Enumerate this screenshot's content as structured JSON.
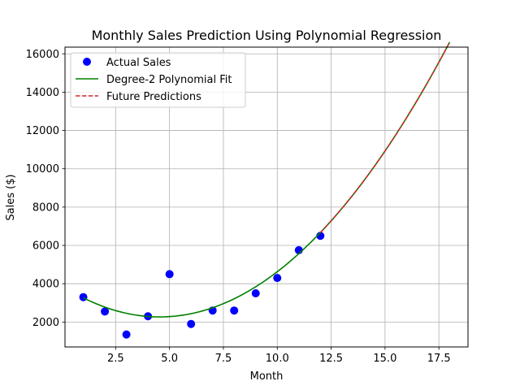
{
  "chart_data": {
    "type": "line",
    "title": "Monthly Sales Prediction Using Polynomial Regression",
    "xlabel": "Month",
    "ylabel": "Sales ($)",
    "xlim": [
      0.15,
      18.85
    ],
    "ylim": [
      700,
      16350
    ],
    "grid": true,
    "legend_position": "top-left",
    "x_ticks": [
      2.5,
      5.0,
      7.5,
      10.0,
      12.5,
      15.0,
      17.5
    ],
    "x_tick_labels": [
      "2.5",
      "5.0",
      "7.5",
      "10.0",
      "12.5",
      "15.0",
      "17.5"
    ],
    "y_ticks": [
      2000,
      4000,
      6000,
      8000,
      10000,
      12000,
      14000,
      16000
    ],
    "y_tick_labels": [
      "2000",
      "4000",
      "6000",
      "8000",
      "10000",
      "12000",
      "14000",
      "16000"
    ],
    "scatter": {
      "name": "Actual Sales",
      "color": "#0000ff",
      "x": [
        1,
        2,
        3,
        4,
        5,
        6,
        7,
        8,
        9,
        10,
        11,
        12
      ],
      "y": [
        3300,
        2550,
        1350,
        2300,
        4500,
        1900,
        2600,
        2600,
        3500,
        4300,
        5750,
        6500
      ]
    },
    "fit": {
      "name": "Degree-2 Polynomial Fit",
      "color": "#008000",
      "x_range": [
        1,
        18
      ],
      "coefficients": {
        "a": 79.2,
        "b": -719.6,
        "c": 3902
      }
    },
    "prediction": {
      "name": "Future Predictions",
      "color": "#d62728",
      "x_range": [
        12,
        18
      ]
    }
  }
}
